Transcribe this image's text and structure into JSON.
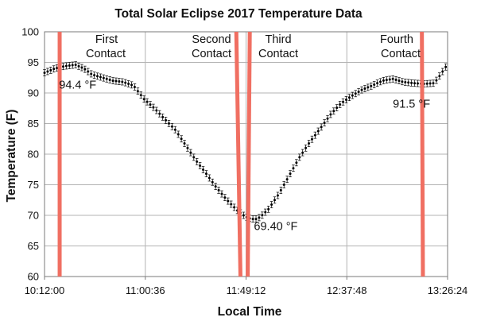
{
  "chart_data": {
    "type": "scatter",
    "title": "Total Solar Eclipse 2017 Temperature Data",
    "xlabel": "Local Time",
    "ylabel": "Temperature (F)",
    "x_unit": "time of day",
    "xlim": [
      "10:12:00",
      "13:26:24"
    ],
    "ylim": [
      60,
      100
    ],
    "x_ticks": [
      "10:12:00",
      "11:00:36",
      "11:49:12",
      "12:37:48",
      "13:26:24"
    ],
    "y_ticks": [
      60,
      65,
      70,
      75,
      80,
      85,
      90,
      95,
      100
    ],
    "grid": true,
    "error_bars": true,
    "series": [
      {
        "name": "",
        "color": "#000000",
        "x": [
          "10:12:00",
          "10:17:00",
          "10:22:00",
          "10:27:00",
          "10:31:00",
          "10:35:00",
          "10:40:00",
          "10:45:00",
          "10:50:00",
          "10:55:00",
          "10:57:00",
          "11:00:00",
          "11:05:00",
          "11:10:00",
          "11:15:00",
          "11:20:00",
          "11:25:00",
          "11:30:00",
          "11:35:00",
          "11:40:00",
          "11:45:00",
          "11:48:00",
          "11:50:00",
          "11:52:00",
          "11:54:00",
          "11:56:00",
          "12:00:00",
          "12:05:00",
          "12:10:00",
          "12:15:00",
          "12:20:00",
          "12:25:00",
          "12:30:00",
          "12:35:00",
          "12:40:00",
          "12:45:00",
          "12:50:00",
          "12:55:00",
          "13:00:00",
          "13:05:00",
          "13:10:00",
          "13:15:00",
          "13:20:00",
          "13:23:00",
          "13:26:00"
        ],
        "y": [
          93.3,
          94.0,
          94.4,
          94.6,
          94.0,
          93.0,
          92.5,
          92.0,
          91.8,
          91.2,
          90.3,
          89.0,
          87.5,
          85.7,
          84.0,
          81.5,
          79.0,
          76.8,
          74.5,
          72.5,
          70.8,
          70.0,
          69.6,
          69.4,
          69.4,
          69.7,
          71.0,
          73.5,
          76.5,
          79.5,
          82.0,
          84.2,
          86.5,
          88.3,
          89.5,
          90.5,
          91.2,
          92.0,
          92.3,
          91.8,
          91.6,
          91.5,
          91.6,
          93.0,
          94.5
        ]
      }
    ],
    "vertical_lines": {
      "color": "#f06f62",
      "lines": [
        {
          "label": "First Contact",
          "x_top": "10:19:18",
          "x_bottom": "10:19:18"
        },
        {
          "label": "Second Contact",
          "x_top": "11:44:30",
          "x_bottom": "11:46:30"
        },
        {
          "label": "Third Contact",
          "x_top": "11:51:00",
          "x_bottom": "11:50:00"
        },
        {
          "label": "Fourth Contact",
          "x_top": "13:14:00",
          "x_bottom": "13:14:30"
        }
      ]
    },
    "labels": {
      "first_contact_line1": "First",
      "first_contact_line2": "Contact",
      "second_contact_line1": "Second",
      "second_contact_line2": "Contact",
      "third_contact_line1": "Third",
      "third_contact_line2": "Contact",
      "fourth_contact_line1": "Fourth",
      "fourth_contact_line2": "Contact"
    },
    "annotations": [
      {
        "text": "94.4 °F",
        "x": "10:19:00",
        "y": 90.7
      },
      {
        "text": "69.40 °F",
        "x": "11:53:00",
        "y": 67.6
      },
      {
        "text": "91.5 °F",
        "x": "13:00:00",
        "y": 87.6
      }
    ]
  }
}
